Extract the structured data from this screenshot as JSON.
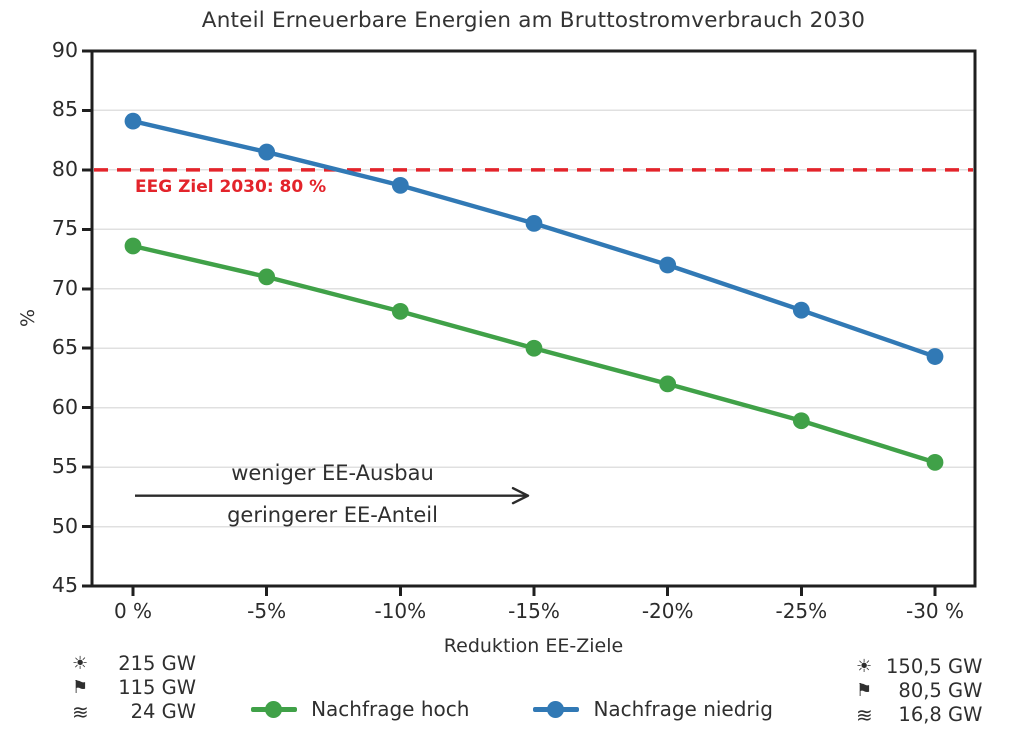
{
  "chart_data": {
    "type": "line",
    "title": "Anteil Erneuerbare Energien am Bruttostromverbrauch 2030",
    "xlabel": "Reduktion EE-Ziele",
    "ylabel": "%",
    "x_tick_labels": [
      "0 %",
      "-5%",
      "-10%",
      "-15%",
      "-20%",
      "-25%",
      "-30 %"
    ],
    "x_values": [
      0,
      -5,
      -10,
      -15,
      -20,
      -25,
      -30
    ],
    "y_ticks": [
      45,
      50,
      55,
      60,
      65,
      70,
      75,
      80,
      85,
      90
    ],
    "ylim": [
      45,
      90
    ],
    "grid": "horizontal",
    "legend_position": "bottom",
    "series": [
      {
        "name": "Nachfrage hoch",
        "color": "#40a148",
        "values": [
          73.6,
          71.0,
          68.1,
          65.0,
          62.0,
          58.9,
          55.4
        ]
      },
      {
        "name": "Nachfrage niedrig",
        "color": "#3179b5",
        "values": [
          84.1,
          81.5,
          78.7,
          75.5,
          72.0,
          68.2,
          64.3
        ]
      }
    ],
    "target_line": {
      "value": 80,
      "label": "EEG Ziel 2030: 80 %",
      "color": "#e3242b",
      "style": "dashed"
    },
    "annotation_arrow": {
      "text_above": "weniger EE-Ausbau",
      "text_below": "geringerer EE-Anteil",
      "y_value": 52.6,
      "from_category": "0 %",
      "to_category": "-15%",
      "direction": "right"
    }
  },
  "legend": {
    "items": [
      {
        "label": "Nachfrage hoch",
        "color": "#40a148"
      },
      {
        "label": "Nachfrage niedrig",
        "color": "#3179b5"
      }
    ]
  },
  "capacity_notes": {
    "left": [
      {
        "icon": "☀",
        "icon_name": "sun-icon",
        "value": "215 GW"
      },
      {
        "icon": "⚑",
        "icon_name": "flag-icon",
        "value": "115 GW"
      },
      {
        "icon": "≋",
        "icon_name": "waves-icon",
        "value": "24 GW"
      }
    ],
    "right": [
      {
        "icon": "☀",
        "icon_name": "sun-icon",
        "value": "150,5 GW"
      },
      {
        "icon": "⚑",
        "icon_name": "flag-icon",
        "value": "80,5 GW"
      },
      {
        "icon": "≋",
        "icon_name": "waves-icon",
        "value": "16,8 GW"
      }
    ]
  },
  "colors": {
    "grid": "#e0e0e0",
    "spine": "#1f1f1f",
    "text": "#303030",
    "target_red": "#e3242b",
    "series_green": "#40a148",
    "series_blue": "#3179b5"
  }
}
